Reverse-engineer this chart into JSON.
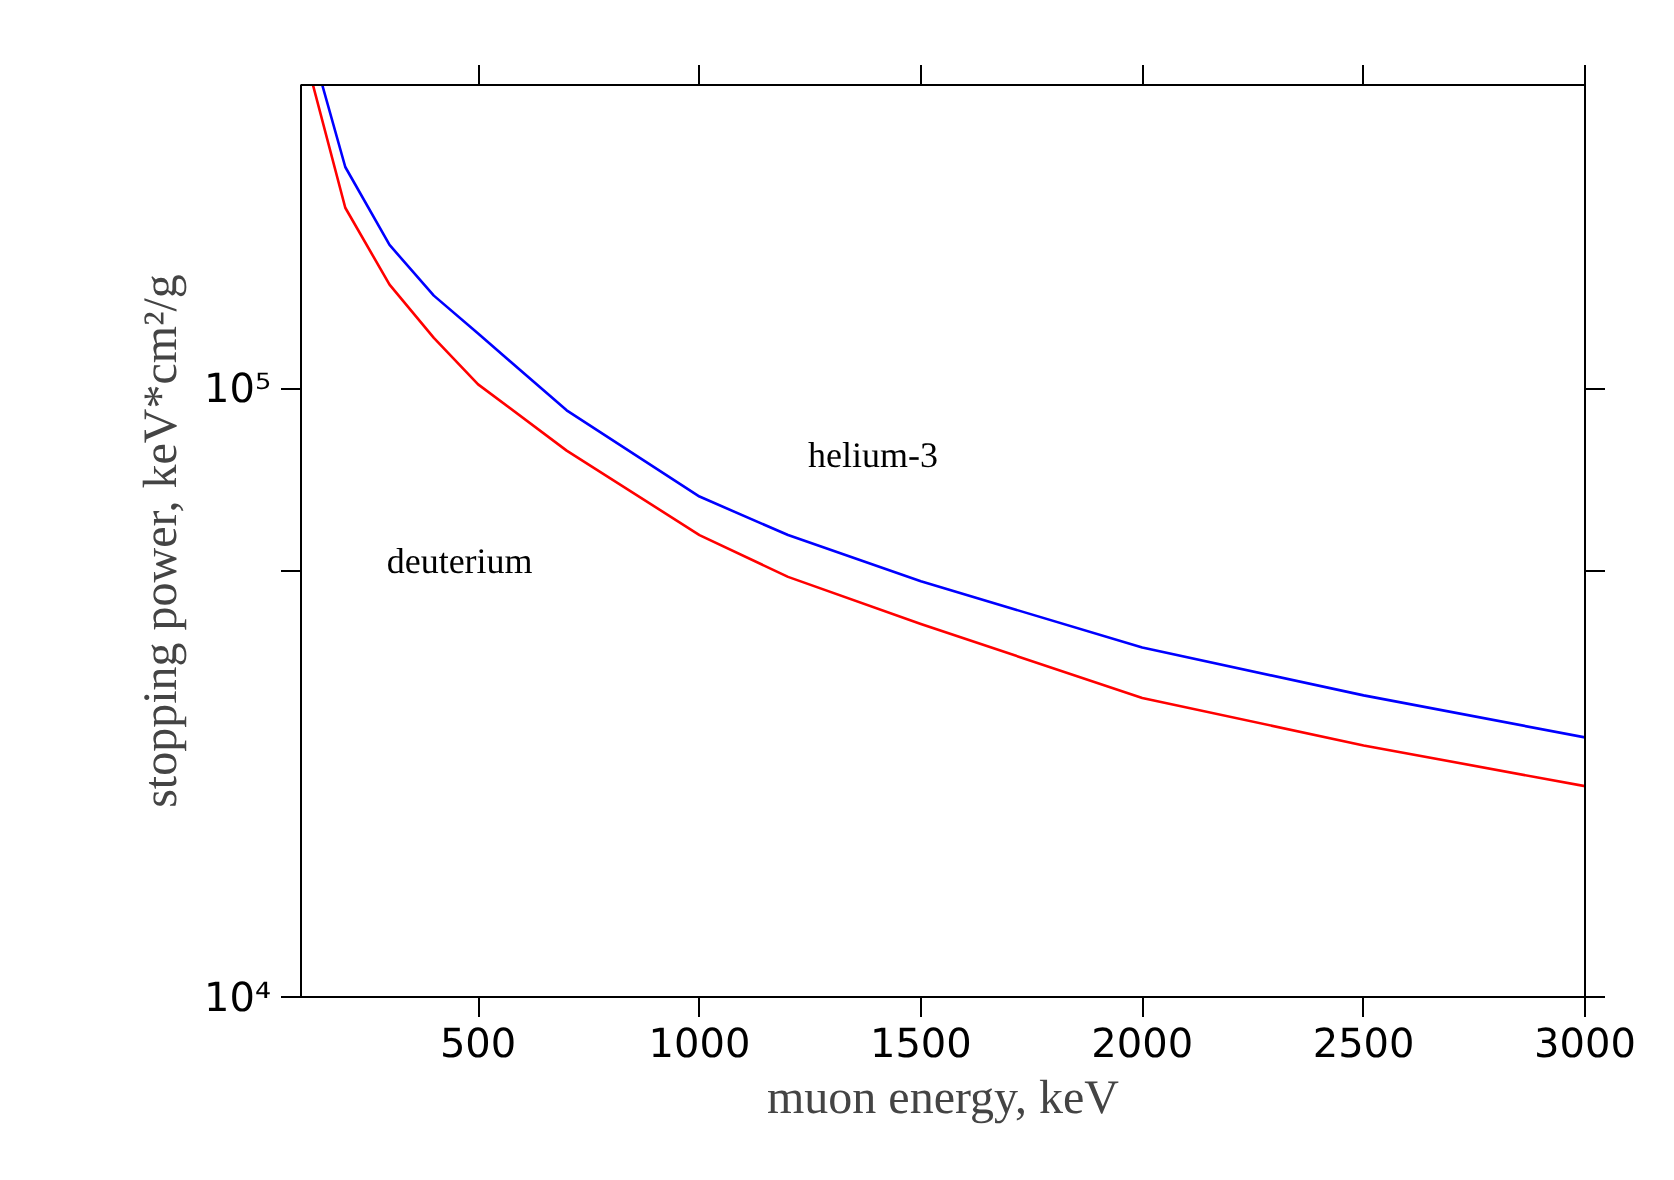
{
  "chart_data": {
    "type": "line",
    "xlabel": "muon energy, keV",
    "ylabel": "stopping power, keV*cm²/g",
    "log": "y",
    "grid": false,
    "marker": "none",
    "line_style": "solid",
    "xlim": [
      100,
      3000
    ],
    "ylim": [
      10000,
      315000
    ],
    "xticks": [
      500,
      1000,
      1500,
      2000,
      2500,
      3000
    ],
    "yticks": [
      {
        "value": 10000,
        "label": "10⁴"
      },
      {
        "value": 50000,
        "label": null
      },
      {
        "value": 100000,
        "label": "10⁵"
      }
    ],
    "series": [
      {
        "name": "helium-3",
        "color": "#0000ff",
        "x": [
          148,
          200,
          300,
          400,
          500,
          700,
          1000,
          1200,
          1500,
          2000,
          2500,
          3000
        ],
        "values": [
          315000,
          231000,
          172000,
          142000,
          123000,
          92000,
          66400,
          57400,
          48200,
          37500,
          31300,
          26700
        ]
      },
      {
        "name": "deuterium",
        "color": "#ff0000",
        "x": [
          127,
          200,
          300,
          400,
          500,
          700,
          1000,
          1200,
          1500,
          2000,
          2500,
          3000
        ],
        "values": [
          315000,
          198000,
          148000,
          121000,
          101500,
          79000,
          57400,
          49000,
          41000,
          31000,
          25900,
          22200
        ]
      }
    ]
  }
}
